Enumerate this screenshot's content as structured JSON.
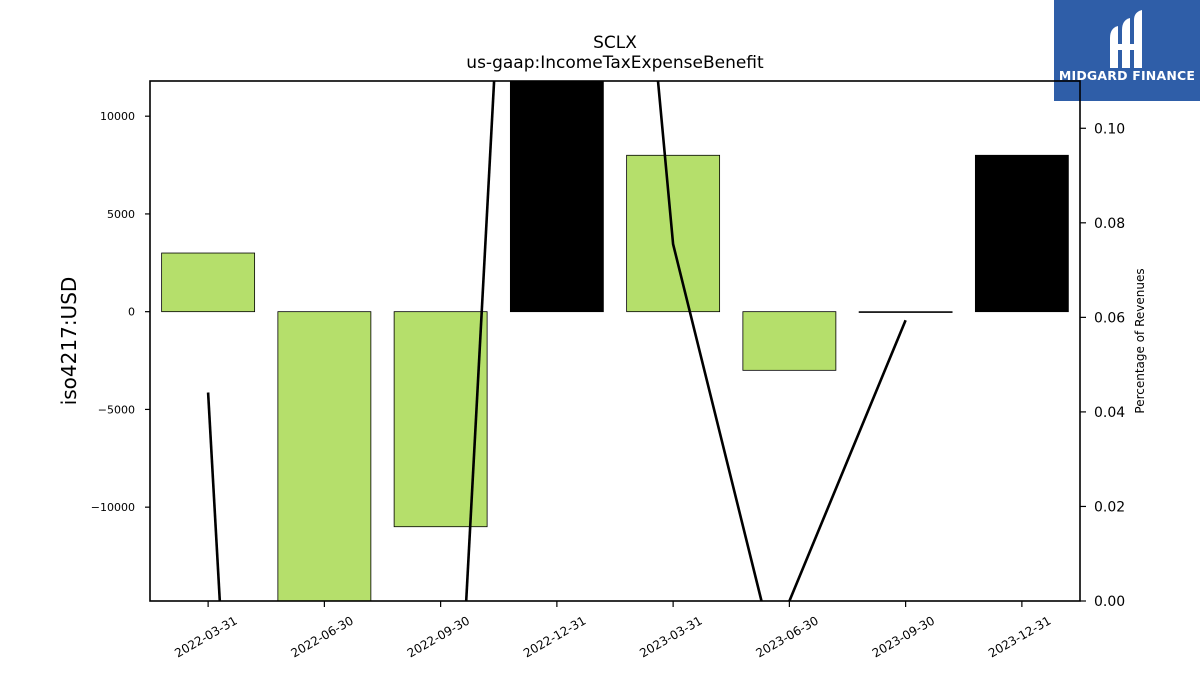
{
  "logo": {
    "text": "MIDGARD FINANCE",
    "icon": "midgard-finance-logo-icon",
    "color": "#2f5ea8"
  },
  "chart_data": {
    "type": "bar",
    "title": "SCLX",
    "subtitle": "us-gaap:IncomeTaxExpenseBenefit",
    "ylabel": "iso4217:USD",
    "y2label": "Percentage of Revenues",
    "categories": [
      "2022-03-31",
      "2022-06-30",
      "2022-09-30",
      "2022-12-31",
      "2023-03-31",
      "2023-06-30",
      "2023-09-30",
      "2023-12-31"
    ],
    "values": [
      3000,
      -15000,
      -11000,
      12000,
      8000,
      -3000,
      0,
      8000
    ],
    "bar_colors": [
      "#b5df6b",
      "#b5df6b",
      "#b5df6b",
      "#000000",
      "#b5df6b",
      "#b5df6b",
      "#b5df6b",
      "#000000"
    ],
    "ylim": [
      -14800,
      11800
    ],
    "yticks": [
      -10000,
      -5000,
      0,
      5000,
      10000
    ],
    "ytick_labels": [
      "−10000",
      "−5000",
      "0",
      "5000",
      "10000"
    ],
    "y2lim": [
      0,
      0.11
    ],
    "y2ticks": [
      0,
      0.02,
      0.04,
      0.06,
      0.08,
      0.1
    ],
    "y2tick_labels": [
      "0.00",
      "0.02",
      "0.04",
      "0.06",
      "0.08",
      "0.10"
    ],
    "line_series": {
      "name": "",
      "segments": [
        [
          [
            0,
            0.0441
          ],
          [
            0.1,
            0.0
          ]
        ],
        [
          [
            2.22,
            0.0
          ],
          [
            2.46,
            0.11
          ]
        ],
        [
          [
            3.87,
            0.11
          ],
          [
            4.0,
            0.0755
          ],
          [
            4.76,
            0.0
          ]
        ],
        [
          [
            5.0,
            0.0
          ],
          [
            6.0,
            0.0594
          ]
        ]
      ]
    },
    "grid": false
  }
}
